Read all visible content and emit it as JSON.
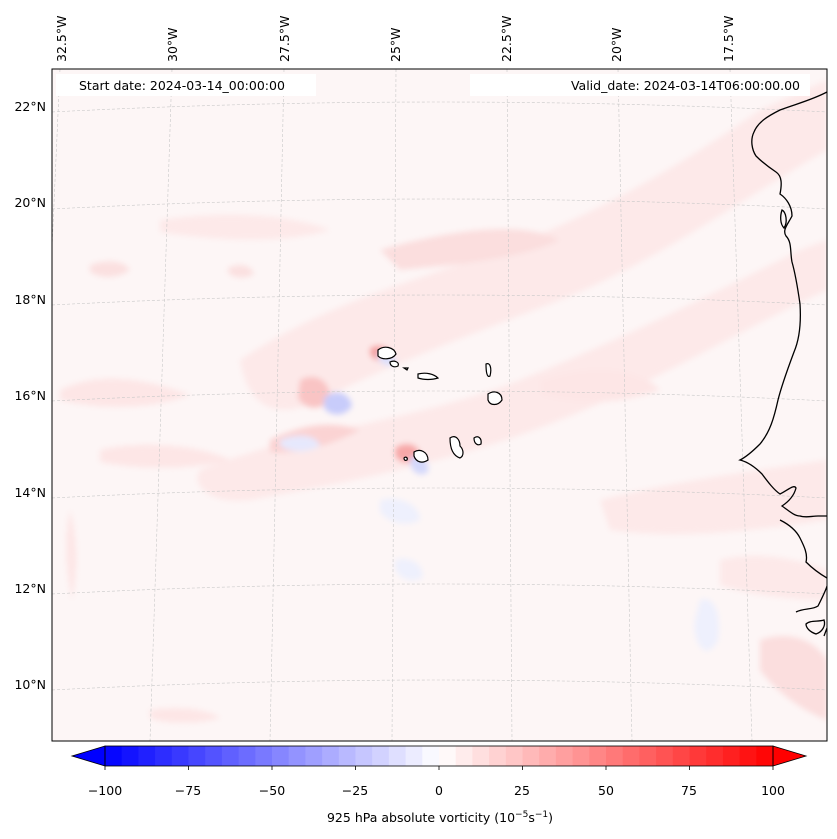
{
  "map": {
    "start_label": "Start date: 2024-03-14_00:00:00",
    "valid_label": "Valid_date: 2024-03-14T06:00:00.00",
    "longitude_labels": [
      "32.5°W",
      "30°W",
      "27.5°W",
      "25°W",
      "22.5°W",
      "20°W",
      "17.5°W"
    ],
    "latitude_labels": [
      "22°N",
      "20°N",
      "18°N",
      "16°N",
      "14°N",
      "12°N",
      "10°N"
    ],
    "projection": "conic",
    "gridlines": true,
    "field_colors": {
      "background": "#fdf6f6",
      "weak_positive": "#fde9e9",
      "positive": "#fbd3d3",
      "strong_positive": "#f7a8a8",
      "weak_negative": "#eef0fd",
      "negative": "#c8ccfb",
      "coastline": "#000000",
      "gridline": "#c8c8c8"
    },
    "islands": [
      "Santo Antão",
      "São Vicente",
      "São Nicolau",
      "Sal",
      "Boa Vista",
      "Maio",
      "Santiago",
      "Fogo",
      "Brava"
    ]
  },
  "colorbar": {
    "ticks": [
      "−100",
      "−75",
      "−50",
      "−25",
      "0",
      "25",
      "50",
      "75",
      "100"
    ],
    "min": -100,
    "max": 100,
    "step": 5,
    "extend": "both",
    "colormap": "bwr",
    "label_prefix": "925 hPa absolute vorticity (10",
    "label_exp1": "−5",
    "label_mid": "s",
    "label_exp2": "−1",
    "label_suffix": ")"
  }
}
